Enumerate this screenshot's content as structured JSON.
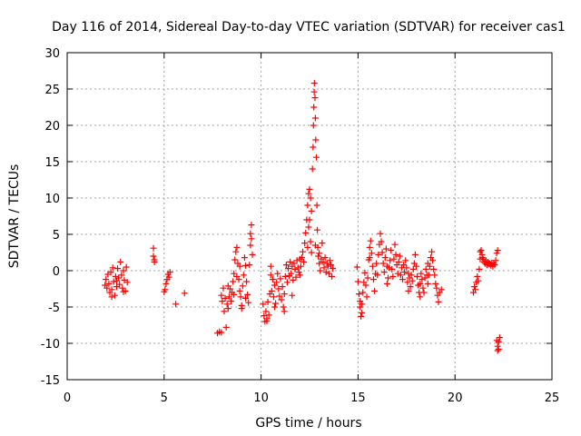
{
  "chart_data": {
    "type": "scatter",
    "title": "Day 116 of 2014, Sidereal Day-to-day VTEC variation (SDTVAR) for receiver cas1",
    "xlabel": "GPS time / hours",
    "ylabel": "SDTVAR / TECUs",
    "xlim": [
      0,
      25
    ],
    "ylim": [
      -15,
      30
    ],
    "xticks": [
      0,
      5,
      10,
      15,
      20,
      25
    ],
    "yticks": [
      -15,
      -10,
      -5,
      0,
      5,
      10,
      15,
      20,
      25,
      30
    ],
    "grid": true,
    "marker": "plus",
    "color": "#ff0000",
    "series": [
      {
        "name": "cas1",
        "points": [
          [
            1.95,
            -2.0
          ],
          [
            2.0,
            -1.2
          ],
          [
            2.05,
            -2.4
          ],
          [
            2.1,
            -0.5
          ],
          [
            2.15,
            -1.8
          ],
          [
            2.2,
            -3.0
          ],
          [
            2.25,
            -0.2
          ],
          [
            2.3,
            -2.6
          ],
          [
            2.35,
            0.4
          ],
          [
            2.4,
            -1.5
          ],
          [
            2.45,
            -3.4
          ],
          [
            2.5,
            -0.8
          ],
          [
            2.55,
            -2.2
          ],
          [
            2.6,
            0.3
          ],
          [
            2.65,
            -1.0
          ],
          [
            2.7,
            -1.9
          ],
          [
            2.75,
            1.2
          ],
          [
            2.8,
            -0.6
          ],
          [
            2.85,
            -2.4
          ],
          [
            2.9,
            0.0
          ],
          [
            2.95,
            -1.3
          ],
          [
            3.0,
            -2.8
          ],
          [
            3.05,
            0.5
          ],
          [
            3.1,
            -1.6
          ],
          [
            2.3,
            -3.6
          ],
          [
            2.55,
            -1.4
          ],
          [
            2.9,
            -2.9
          ],
          [
            4.45,
            3.1
          ],
          [
            4.45,
            2.0
          ],
          [
            4.5,
            1.5
          ],
          [
            4.5,
            1.2
          ],
          [
            5.05,
            -2.6
          ],
          [
            5.1,
            -1.8
          ],
          [
            5.15,
            -1.2
          ],
          [
            5.2,
            -0.5
          ],
          [
            5.25,
            -0.9
          ],
          [
            5.3,
            -0.2
          ],
          [
            5.0,
            -2.9
          ],
          [
            5.6,
            -4.6
          ],
          [
            6.05,
            -3.1
          ],
          [
            7.75,
            -8.6
          ],
          [
            7.85,
            -8.4
          ],
          [
            7.95,
            -8.5
          ],
          [
            7.95,
            -3.4
          ],
          [
            8.0,
            -4.2
          ],
          [
            8.05,
            -2.4
          ],
          [
            8.1,
            -5.6
          ],
          [
            8.15,
            -3.8
          ],
          [
            8.2,
            -7.8
          ],
          [
            8.25,
            -4.6
          ],
          [
            8.3,
            -2.1
          ],
          [
            8.35,
            -3.6
          ],
          [
            8.4,
            -2.5
          ],
          [
            8.45,
            -4.2
          ],
          [
            8.5,
            -3.0
          ],
          [
            8.55,
            -1.5
          ],
          [
            8.6,
            -0.4
          ],
          [
            8.65,
            1.5
          ],
          [
            8.7,
            2.6
          ],
          [
            8.75,
            3.2
          ],
          [
            8.8,
            1.0
          ],
          [
            8.85,
            -1.2
          ],
          [
            8.9,
            -2.8
          ],
          [
            8.95,
            -3.6
          ],
          [
            9.0,
            -4.8
          ],
          [
            9.05,
            -2.1
          ],
          [
            9.1,
            -0.6
          ],
          [
            9.15,
            1.8
          ],
          [
            9.2,
            0.7
          ],
          [
            9.25,
            -1.5
          ],
          [
            9.3,
            -3.3
          ],
          [
            9.35,
            -4.4
          ],
          [
            9.4,
            0.8
          ],
          [
            9.45,
            3.5
          ],
          [
            9.5,
            6.3
          ],
          [
            9.45,
            5.1
          ],
          [
            9.5,
            4.4
          ],
          [
            9.55,
            2.2
          ],
          [
            8.3,
            -5.2
          ],
          [
            8.6,
            -3.3
          ],
          [
            9.0,
            -5.2
          ],
          [
            9.2,
            -3.8
          ],
          [
            8.75,
            -0.8
          ],
          [
            8.9,
            0.6
          ],
          [
            10.1,
            -4.6
          ],
          [
            10.15,
            -6.2
          ],
          [
            10.2,
            -7.0
          ],
          [
            10.25,
            -5.6
          ],
          [
            10.3,
            -6.6
          ],
          [
            10.35,
            -4.3
          ],
          [
            10.4,
            -6.1
          ],
          [
            10.45,
            -3.2
          ],
          [
            10.5,
            -0.6
          ],
          [
            10.5,
            0.6
          ],
          [
            10.55,
            -2.8
          ],
          [
            10.6,
            -1.2
          ],
          [
            10.65,
            -3.6
          ],
          [
            10.7,
            -2.0
          ],
          [
            10.75,
            -4.5
          ],
          [
            10.8,
            -1.6
          ],
          [
            10.85,
            -0.4
          ],
          [
            10.9,
            -2.5
          ],
          [
            10.95,
            -3.5
          ],
          [
            11.0,
            -1.1
          ],
          [
            11.05,
            -4.0
          ],
          [
            11.1,
            -2.2
          ],
          [
            11.15,
            -5.0
          ],
          [
            11.2,
            -3.2
          ],
          [
            11.25,
            -0.8
          ],
          [
            11.3,
            0.8
          ],
          [
            11.35,
            -1.6
          ],
          [
            11.4,
            0.3
          ],
          [
            11.45,
            -0.7
          ],
          [
            11.5,
            1.2
          ],
          [
            11.55,
            -0.4
          ],
          [
            11.6,
            0.6
          ],
          [
            11.65,
            -1.3
          ],
          [
            11.7,
            1.0
          ],
          [
            11.75,
            0.2
          ],
          [
            11.8,
            -0.9
          ],
          [
            11.85,
            1.4
          ],
          [
            11.9,
            0.4
          ],
          [
            11.95,
            -0.2
          ],
          [
            12.0,
            1.6
          ],
          [
            12.05,
            0.6
          ],
          [
            12.1,
            1.8
          ],
          [
            12.15,
            2.6
          ],
          [
            12.2,
            1.2
          ],
          [
            12.25,
            3.8
          ],
          [
            12.3,
            5.2
          ],
          [
            12.35,
            7.0
          ],
          [
            12.4,
            9.0
          ],
          [
            12.45,
            10.6
          ],
          [
            12.5,
            11.2
          ],
          [
            12.55,
            10.0
          ],
          [
            12.6,
            8.2
          ],
          [
            12.65,
            14.0
          ],
          [
            12.68,
            17.0
          ],
          [
            12.7,
            20.0
          ],
          [
            12.72,
            22.5
          ],
          [
            12.74,
            24.6
          ],
          [
            12.75,
            25.8
          ],
          [
            12.78,
            23.8
          ],
          [
            12.8,
            21.0
          ],
          [
            12.82,
            18.0
          ],
          [
            12.85,
            15.6
          ],
          [
            12.88,
            9.0
          ],
          [
            12.9,
            5.6
          ],
          [
            12.92,
            3.2
          ],
          [
            12.95,
            2.0
          ],
          [
            13.0,
            1.0
          ],
          [
            13.05,
            0.0
          ],
          [
            13.1,
            1.6
          ],
          [
            13.15,
            3.8
          ],
          [
            13.2,
            1.2
          ],
          [
            13.25,
            0.4
          ],
          [
            13.3,
            1.8
          ],
          [
            13.35,
            -0.2
          ],
          [
            13.4,
            1.0
          ],
          [
            13.45,
            0.6
          ],
          [
            13.5,
            -0.4
          ],
          [
            13.55,
            1.4
          ],
          [
            13.6,
            0.8
          ],
          [
            13.65,
            -0.8
          ],
          [
            13.7,
            0.3
          ],
          [
            10.3,
            -6.9
          ],
          [
            10.7,
            -5.0
          ],
          [
            11.2,
            -5.6
          ],
          [
            11.6,
            -3.4
          ],
          [
            12.0,
            -0.6
          ],
          [
            12.5,
            7.0
          ],
          [
            12.55,
            4.0
          ],
          [
            12.6,
            2.5
          ],
          [
            13.0,
            2.4
          ],
          [
            12.8,
            3.5
          ],
          [
            12.45,
            6.0
          ],
          [
            12.4,
            3.2
          ],
          [
            14.95,
            0.5
          ],
          [
            15.0,
            -1.5
          ],
          [
            15.05,
            -3.2
          ],
          [
            15.1,
            -5.0
          ],
          [
            15.15,
            -6.3
          ],
          [
            15.2,
            -4.6
          ],
          [
            15.25,
            -3.0
          ],
          [
            15.3,
            -1.6
          ],
          [
            15.35,
            -0.3
          ],
          [
            15.4,
            -2.0
          ],
          [
            15.45,
            -3.6
          ],
          [
            15.5,
            -1.0
          ],
          [
            15.55,
            1.5
          ],
          [
            15.6,
            3.2
          ],
          [
            15.65,
            4.1
          ],
          [
            15.7,
            2.4
          ],
          [
            15.75,
            0.6
          ],
          [
            15.8,
            -1.2
          ],
          [
            15.85,
            -2.8
          ],
          [
            15.9,
            -0.4
          ],
          [
            15.95,
            1.0
          ],
          [
            16.0,
            -0.6
          ],
          [
            16.05,
            2.2
          ],
          [
            16.1,
            3.6
          ],
          [
            16.15,
            5.1
          ],
          [
            16.2,
            4.0
          ],
          [
            16.25,
            2.5
          ],
          [
            16.3,
            1.0
          ],
          [
            16.35,
            -0.2
          ],
          [
            16.4,
            1.8
          ],
          [
            16.45,
            3.0
          ],
          [
            16.5,
            0.6
          ],
          [
            16.55,
            -1.0
          ],
          [
            16.6,
            0.4
          ],
          [
            16.65,
            1.4
          ],
          [
            16.7,
            2.8
          ],
          [
            16.75,
            0.2
          ],
          [
            16.8,
            -0.8
          ],
          [
            16.85,
            1.6
          ],
          [
            16.9,
            3.6
          ],
          [
            16.95,
            2.2
          ],
          [
            17.0,
            0.8
          ],
          [
            17.05,
            -0.4
          ],
          [
            17.1,
            1.2
          ],
          [
            17.15,
            2.0
          ],
          [
            17.2,
            -0.6
          ],
          [
            17.25,
            0.4
          ],
          [
            17.3,
            -1.2
          ],
          [
            17.35,
            0.8
          ],
          [
            17.4,
            -0.2
          ],
          [
            17.45,
            1.4
          ],
          [
            17.5,
            0.4
          ],
          [
            17.55,
            -1.6
          ],
          [
            17.6,
            -2.8
          ],
          [
            17.65,
            -1.0
          ],
          [
            17.7,
            -2.2
          ],
          [
            17.75,
            -0.6
          ],
          [
            17.8,
            -1.4
          ],
          [
            17.85,
            0.2
          ],
          [
            17.9,
            1.0
          ],
          [
            17.95,
            2.2
          ],
          [
            18.0,
            0.6
          ],
          [
            18.05,
            -0.8
          ],
          [
            18.1,
            -2.0
          ],
          [
            18.15,
            -3.0
          ],
          [
            18.2,
            -1.8
          ],
          [
            18.25,
            -0.4
          ],
          [
            18.3,
            -1.2
          ],
          [
            18.35,
            -2.4
          ],
          [
            18.4,
            -3.0
          ],
          [
            18.45,
            -1.0
          ],
          [
            18.5,
            0.2
          ],
          [
            18.55,
            -0.6
          ],
          [
            18.6,
            -1.8
          ],
          [
            18.65,
            -0.6
          ],
          [
            18.7,
            0.6
          ],
          [
            18.75,
            1.8
          ],
          [
            18.8,
            2.6
          ],
          [
            18.85,
            1.4
          ],
          [
            18.9,
            0.2
          ],
          [
            18.95,
            -0.6
          ],
          [
            19.0,
            -1.8
          ],
          [
            19.05,
            -2.4
          ],
          [
            19.1,
            -3.4
          ],
          [
            19.15,
            -4.3
          ],
          [
            19.2,
            -3.0
          ],
          [
            19.3,
            -2.6
          ],
          [
            15.1,
            -4.2
          ],
          [
            15.2,
            -5.8
          ],
          [
            15.6,
            1.8
          ],
          [
            16.5,
            -1.8
          ],
          [
            17.6,
            -0.4
          ],
          [
            18.2,
            -3.6
          ],
          [
            18.6,
            1.0
          ],
          [
            20.95,
            -3.0
          ],
          [
            21.0,
            -2.2
          ],
          [
            21.05,
            -2.6
          ],
          [
            21.1,
            -1.6
          ],
          [
            21.15,
            -0.8
          ],
          [
            21.2,
            -1.4
          ],
          [
            21.25,
            0.2
          ],
          [
            21.3,
            1.6
          ],
          [
            21.35,
            2.8
          ],
          [
            21.4,
            2.2
          ],
          [
            21.45,
            1.6
          ],
          [
            21.5,
            1.2
          ],
          [
            21.55,
            1.0
          ],
          [
            21.6,
            1.4
          ],
          [
            21.65,
            0.8
          ],
          [
            21.7,
            1.2
          ],
          [
            21.75,
            0.9
          ],
          [
            21.8,
            1.0
          ],
          [
            21.85,
            0.7
          ],
          [
            21.9,
            1.1
          ],
          [
            21.95,
            0.6
          ],
          [
            22.0,
            1.0
          ],
          [
            22.05,
            0.8
          ],
          [
            22.1,
            1.4
          ],
          [
            22.15,
            2.4
          ],
          [
            22.2,
            2.8
          ],
          [
            21.3,
            2.6
          ],
          [
            21.4,
            1.8
          ],
          [
            22.15,
            -9.6
          ],
          [
            22.2,
            -10.4
          ],
          [
            22.2,
            -11.0
          ],
          [
            22.25,
            -9.8
          ],
          [
            22.3,
            -9.2
          ],
          [
            22.25,
            -10.8
          ]
        ]
      }
    ]
  }
}
